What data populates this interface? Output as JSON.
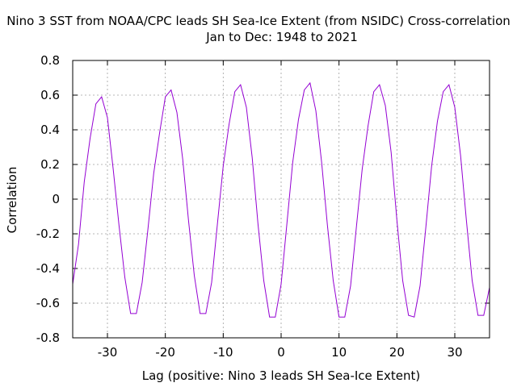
{
  "chart_data": {
    "type": "line",
    "title": "Nino 3 SST from NOAA/CPC  leads SH Sea-Ice Extent (from NSIDC) Cross-correlation",
    "subtitle": "Jan to Dec: 1948 to 2021",
    "xlabel": "Lag (positive: Nino 3 leads SH Sea-Ice Extent)",
    "ylabel": "Correlation",
    "xlim": [
      -36,
      36
    ],
    "ylim": [
      -0.8,
      0.8
    ],
    "xticks": [
      -30,
      -20,
      -10,
      0,
      10,
      20,
      30
    ],
    "yticks": [
      -0.8,
      -0.6,
      -0.4,
      -0.2,
      0,
      0.2,
      0.4,
      0.6,
      0.8
    ],
    "grid": true,
    "legend": "none",
    "color": "#9400d3",
    "x": [
      -36,
      -35,
      -34,
      -33,
      -32,
      -31,
      -30,
      -29,
      -28,
      -27,
      -26,
      -25,
      -24,
      -23,
      -22,
      -21,
      -20,
      -19,
      -18,
      -17,
      -16,
      -15,
      -14,
      -13,
      -12,
      -11,
      -10,
      -9,
      -8,
      -7,
      -6,
      -5,
      -4,
      -3,
      -2,
      -1,
      0,
      1,
      2,
      3,
      4,
      5,
      6,
      7,
      8,
      9,
      10,
      11,
      12,
      13,
      14,
      15,
      16,
      17,
      18,
      19,
      20,
      21,
      22,
      23,
      24,
      25,
      26,
      27,
      28,
      29,
      30,
      31,
      32,
      33,
      34,
      35,
      36
    ],
    "y": [
      -0.49,
      -0.26,
      0.1,
      0.35,
      0.55,
      0.59,
      0.47,
      0.17,
      -0.15,
      -0.45,
      -0.66,
      -0.66,
      -0.48,
      -0.17,
      0.15,
      0.38,
      0.59,
      0.63,
      0.5,
      0.23,
      -0.12,
      -0.44,
      -0.66,
      -0.66,
      -0.48,
      -0.14,
      0.19,
      0.43,
      0.62,
      0.66,
      0.53,
      0.24,
      -0.14,
      -0.47,
      -0.68,
      -0.68,
      -0.49,
      -0.14,
      0.21,
      0.46,
      0.63,
      0.67,
      0.51,
      0.21,
      -0.15,
      -0.47,
      -0.68,
      -0.68,
      -0.5,
      -0.16,
      0.17,
      0.42,
      0.62,
      0.66,
      0.54,
      0.27,
      -0.12,
      -0.47,
      -0.67,
      -0.68,
      -0.5,
      -0.16,
      0.19,
      0.45,
      0.62,
      0.66,
      0.53,
      0.25,
      -0.12,
      -0.47,
      -0.67,
      -0.67,
      -0.51
    ]
  }
}
